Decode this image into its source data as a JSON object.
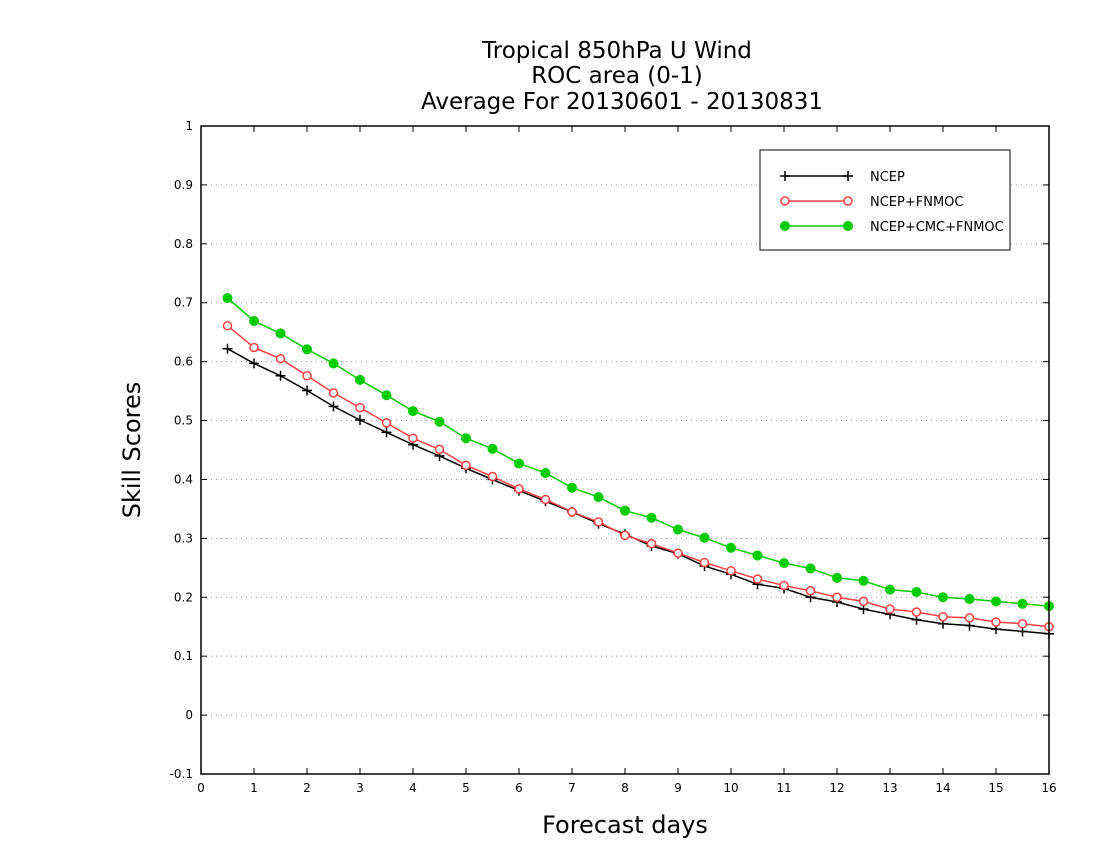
{
  "chart_data": {
    "type": "line",
    "title_lines": [
      "Tropical 850hPa U Wind",
      "ROC area (0-1)",
      "Average For 20130601 - 20130831"
    ],
    "xlabel": "Forecast days",
    "ylabel": "Skill Scores",
    "xlim": [
      0,
      16
    ],
    "ylim": [
      -0.1,
      1
    ],
    "x_ticks": [
      "0",
      "1",
      "2",
      "3",
      "4",
      "5",
      "6",
      "7",
      "8",
      "9",
      "10",
      "11",
      "12",
      "13",
      "14",
      "15",
      "16"
    ],
    "y_ticks": [
      "-0.1",
      "0",
      "0.1",
      "0.2",
      "0.3",
      "0.4",
      "0.5",
      "0.6",
      "0.7",
      "0.8",
      "0.9",
      "1"
    ],
    "grid": true,
    "legend_position": "top-right",
    "x": [
      0.5,
      1,
      1.5,
      2,
      2.5,
      3,
      3.5,
      4,
      4.5,
      5,
      5.5,
      6,
      6.5,
      7,
      7.5,
      8,
      8.5,
      9,
      9.5,
      10,
      10.5,
      11,
      11.5,
      12,
      12.5,
      13,
      13.5,
      14,
      14.5,
      15,
      15.5,
      16
    ],
    "series": [
      {
        "name": "NCEP",
        "color": "#000000",
        "marker": "plus",
        "values": [
          0.622,
          0.597,
          0.576,
          0.551,
          0.524,
          0.501,
          0.48,
          0.459,
          0.44,
          0.419,
          0.4,
          0.381,
          0.363,
          0.345,
          0.325,
          0.307,
          0.287,
          0.274,
          0.253,
          0.239,
          0.222,
          0.215,
          0.2,
          0.192,
          0.18,
          0.171,
          0.162,
          0.155,
          0.152,
          0.146,
          0.142,
          0.138
        ]
      },
      {
        "name": "NCEP+FNMOC",
        "color": "#ff4040",
        "marker": "circle-open",
        "values": [
          0.661,
          0.624,
          0.605,
          0.576,
          0.547,
          0.522,
          0.496,
          0.47,
          0.451,
          0.424,
          0.405,
          0.384,
          0.366,
          0.345,
          0.328,
          0.305,
          0.291,
          0.275,
          0.259,
          0.245,
          0.231,
          0.22,
          0.211,
          0.2,
          0.193,
          0.18,
          0.175,
          0.167,
          0.165,
          0.158,
          0.155,
          0.15
        ]
      },
      {
        "name": "NCEP+CMC+FNMOC",
        "color": "#00cc00",
        "marker": "circle-filled",
        "values": [
          0.708,
          0.669,
          0.648,
          0.621,
          0.597,
          0.569,
          0.543,
          0.516,
          0.498,
          0.47,
          0.452,
          0.427,
          0.411,
          0.386,
          0.37,
          0.347,
          0.335,
          0.315,
          0.301,
          0.284,
          0.271,
          0.258,
          0.249,
          0.233,
          0.228,
          0.213,
          0.209,
          0.2,
          0.197,
          0.193,
          0.189,
          0.185
        ]
      }
    ]
  }
}
